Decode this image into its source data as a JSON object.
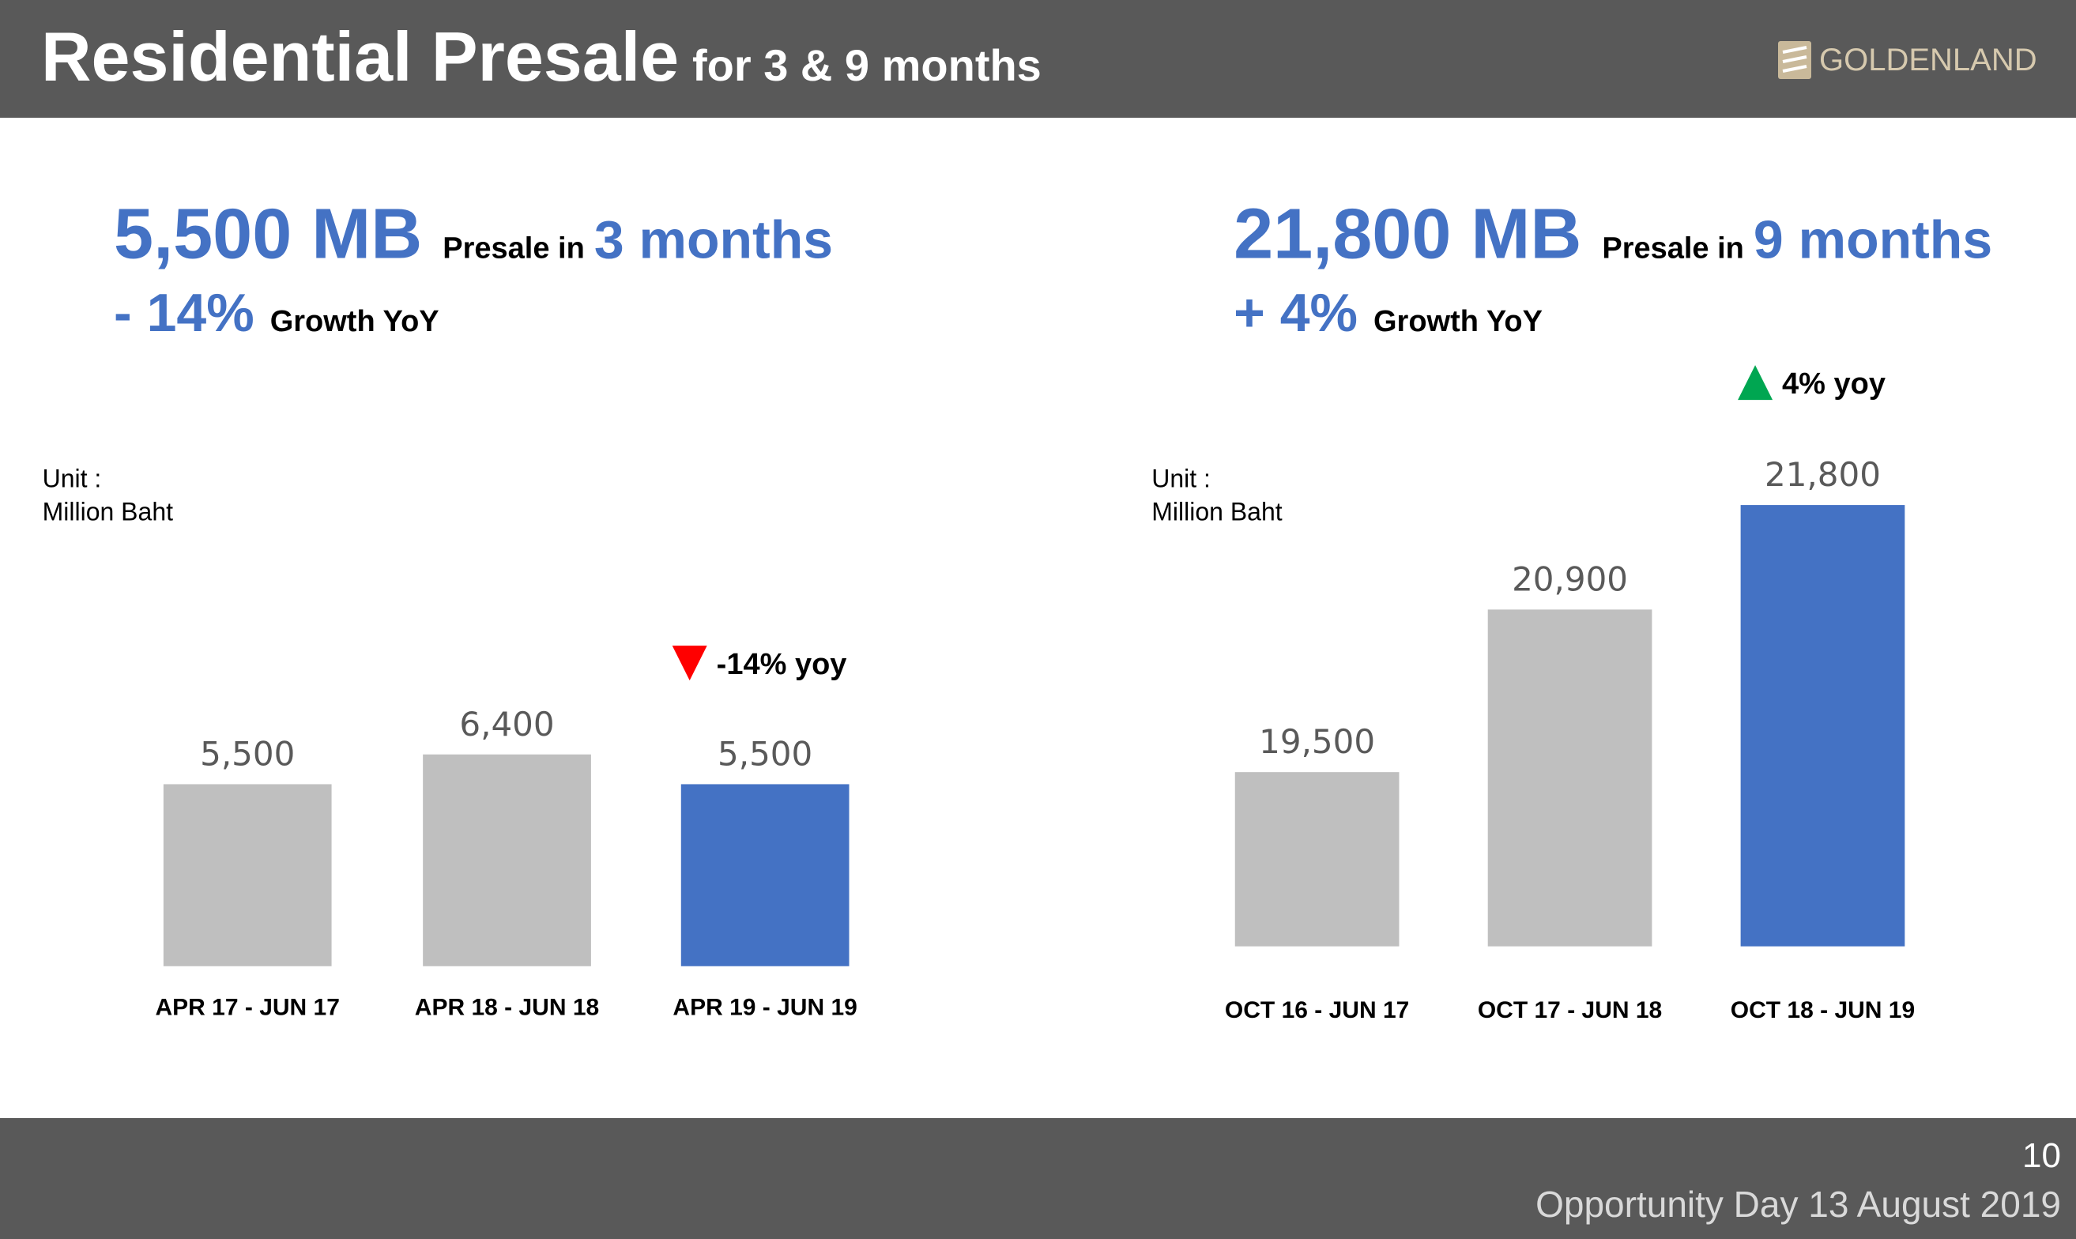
{
  "header": {
    "title": "Residential Presale",
    "subtitle": "for 3 & 9 months",
    "logo": "GOLDENLAND"
  },
  "footer": {
    "page": "10",
    "event": "Opportunity Day 13 August 2019"
  },
  "chart_data": [
    {
      "type": "bar",
      "headline": {
        "amount": "5,500 MB",
        "label": "Presale in",
        "period": "3 months",
        "growth": "- 14%",
        "growth_label": "Growth YoY"
      },
      "unit_label": "Unit :",
      "unit": "Million Baht",
      "annotation": "-14% yoy",
      "annotation_color": "#ff0000",
      "annotation_marker": "down",
      "categories": [
        "APR 17 - JUN 17",
        "APR 18 - JUN 18",
        "APR 19 - JUN 19"
      ],
      "values": [
        5500,
        6400,
        5500
      ],
      "value_labels": [
        "5,500",
        "6,400",
        "5,500"
      ],
      "colors": [
        "#bfbfbf",
        "#bfbfbf",
        "#4472c4"
      ],
      "ylim": [
        0,
        10000
      ]
    },
    {
      "type": "bar",
      "headline": {
        "amount": "21,800 MB",
        "label": "Presale in",
        "period": "9 months",
        "growth": "+ 4%",
        "growth_label": "Growth YoY"
      },
      "unit_label": "Unit :",
      "unit": "Million Baht",
      "annotation": "4% yoy",
      "annotation_color": "#00a651",
      "annotation_marker": "up",
      "categories": [
        "OCT 16 - JUN 17",
        "OCT 17 - JUN 18",
        "OCT 18 - JUN 19"
      ],
      "values": [
        19500,
        20900,
        21800
      ],
      "value_labels": [
        "19,500",
        "20,900",
        "21,800"
      ],
      "colors": [
        "#bfbfbf",
        "#bfbfbf",
        "#4472c4"
      ],
      "ylim": [
        18000,
        22000
      ]
    }
  ]
}
